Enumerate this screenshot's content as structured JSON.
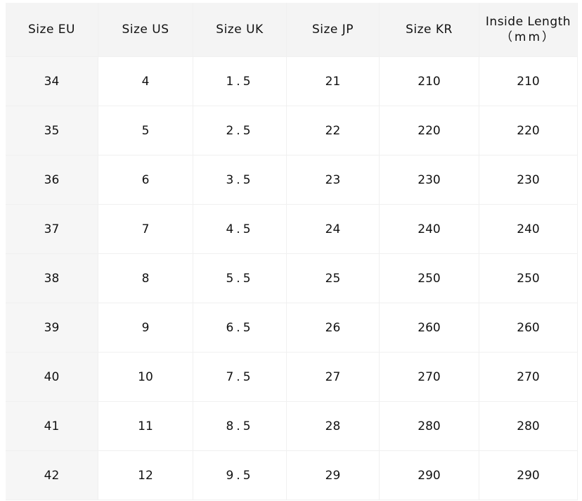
{
  "table": {
    "headers": [
      [
        "Size EU"
      ],
      [
        "Size US"
      ],
      [
        "Size UK"
      ],
      [
        "Size JP"
      ],
      [
        "Size KR"
      ],
      [
        "Inside Length",
        "（mm）"
      ]
    ],
    "rows": [
      [
        "34",
        "4",
        "1.5",
        "21",
        "210",
        "210"
      ],
      [
        "35",
        "5",
        "2.5",
        "22",
        "220",
        "220"
      ],
      [
        "36",
        "6",
        "3.5",
        "23",
        "230",
        "230"
      ],
      [
        "37",
        "7",
        "4.5",
        "24",
        "240",
        "240"
      ],
      [
        "38",
        "8",
        "5.5",
        "25",
        "250",
        "250"
      ],
      [
        "39",
        "9",
        "6.5",
        "26",
        "260",
        "260"
      ],
      [
        "40",
        "10",
        "7.5",
        "27",
        "270",
        "270"
      ],
      [
        "41",
        "11",
        "8.5",
        "28",
        "280",
        "280"
      ],
      [
        "42",
        "12",
        "9.5",
        "29",
        "290",
        "290"
      ]
    ]
  }
}
